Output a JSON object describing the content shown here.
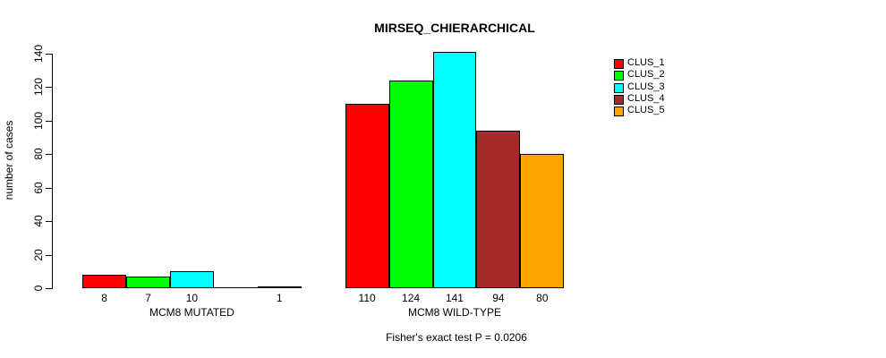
{
  "chart_data": {
    "type": "bar",
    "title": "MIRSEQ_CHIERARCHICAL",
    "ylabel": "number of cases",
    "xlabel": "",
    "ylim": [
      0,
      140
    ],
    "y_ticks": [
      0,
      20,
      40,
      60,
      80,
      100,
      120,
      140
    ],
    "categories": [
      "MCM8 MUTATED",
      "MCM8 WILD-TYPE"
    ],
    "series": [
      {
        "name": "CLUS_1",
        "color": "#FF0000",
        "values": [
          8,
          110
        ]
      },
      {
        "name": "CLUS_2",
        "color": "#00FF00",
        "values": [
          7,
          124
        ]
      },
      {
        "name": "CLUS_3",
        "color": "#00FFFF",
        "values": [
          10,
          141
        ]
      },
      {
        "name": "CLUS_4",
        "color": "#A52A2A",
        "values": [
          0,
          94
        ]
      },
      {
        "name": "CLUS_5",
        "color": "#FFA500",
        "values": [
          1,
          80
        ]
      }
    ],
    "bar_value_labels": [
      [
        "8",
        "7",
        "10",
        "",
        "1"
      ],
      [
        "110",
        "124",
        "141",
        "94",
        "80"
      ]
    ],
    "annotation": "Fisher's exact test P = 0.0206",
    "legend_position": "top-right",
    "grid": false,
    "bar_outline_color": "#000000",
    "background_color": "#FFFFFF"
  }
}
